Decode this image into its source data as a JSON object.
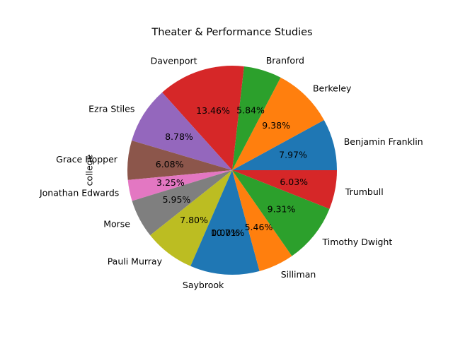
{
  "chart_data": {
    "type": "pie",
    "title": "Theater & Performance Studies",
    "ylabel": "college",
    "categories": [
      "Benjamin Franklin",
      "Berkeley",
      "Branford",
      "Davenport",
      "Ezra Stiles",
      "Grace Hopper",
      "Jonathan Edwards",
      "Morse",
      "Pauli Murray",
      "Saybrook",
      "Silliman",
      "Timothy Dwight",
      "Trumbull"
    ],
    "values": [
      7.97,
      9.38,
      5.84,
      13.46,
      8.78,
      6.08,
      3.25,
      5.95,
      7.8,
      10.71,
      5.46,
      9.31,
      6.03
    ],
    "value_labels": [
      "7.97%",
      "9.38%",
      "5.84%",
      "13.46%",
      "8.78%",
      "6.08%",
      "3.25%",
      "5.95%",
      "7.80%",
      "10.71%",
      "5.46%",
      "9.31%",
      "6.03%"
    ],
    "extra_labels": [
      "0.00%"
    ],
    "colors": [
      "#1f77b4",
      "#ff7f0e",
      "#2ca02c",
      "#d62728",
      "#9467bd",
      "#8c564b",
      "#e377c2",
      "#7f7f7f",
      "#bcbd22",
      "#1f77b4",
      "#ff7f0e",
      "#2ca02c",
      "#d62728"
    ],
    "start_angle_deg": 0,
    "direction": "counterclockwise",
    "legend": "none"
  }
}
